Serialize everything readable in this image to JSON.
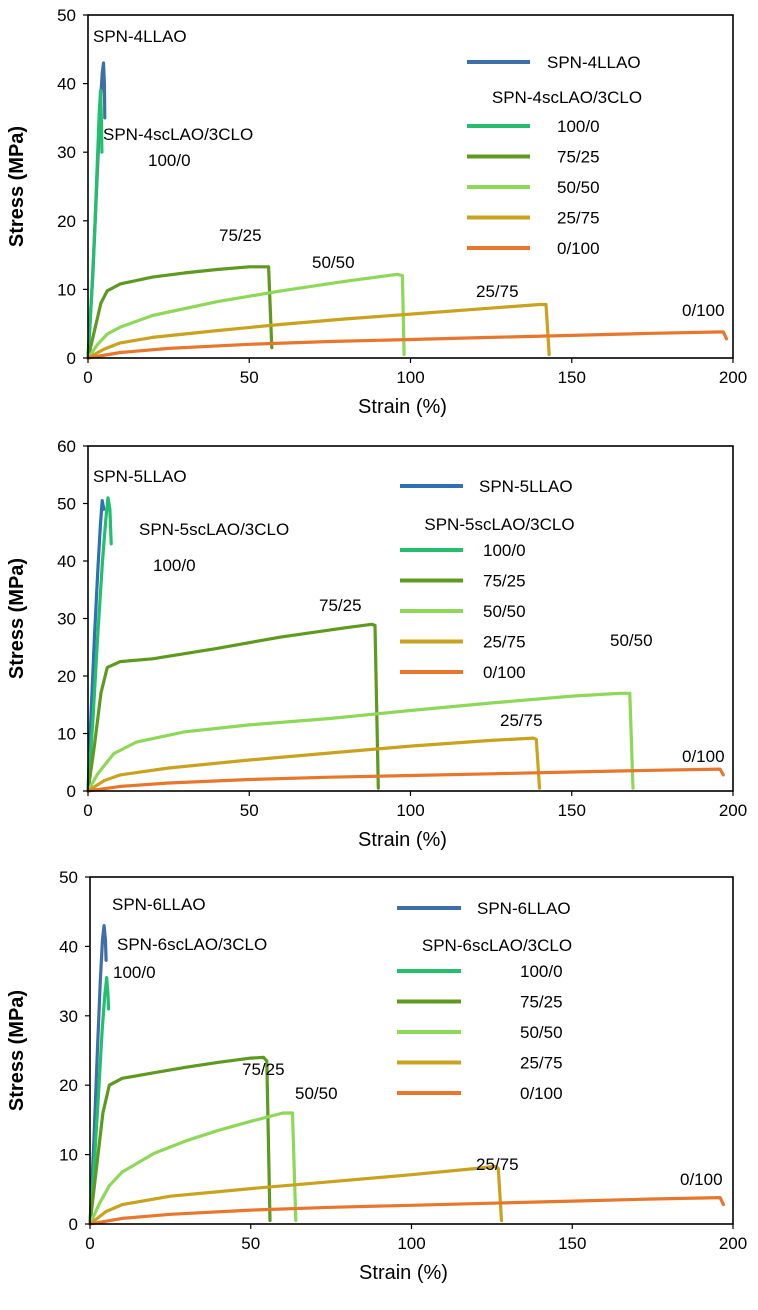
{
  "chart_data": [
    {
      "type": "line",
      "xlabel": "Strain (%)",
      "ylabel": "Stress (MPa)",
      "xlim": [
        0,
        200
      ],
      "ylim": [
        0,
        50
      ],
      "x_ticks": [
        "0",
        "50",
        "100",
        "150",
        "200"
      ],
      "y_ticks": [
        "0",
        "10",
        "20",
        "30",
        "40",
        "50"
      ],
      "legend": {
        "title": "SPN-4LLAO",
        "subtitle": "SPN-4scLAO/3CLO",
        "entries": [
          "100/0",
          "75/25",
          "50/50",
          "25/75",
          "0/100"
        ]
      },
      "annotations": [
        "SPN-4LLAO",
        "SPN-4scLAO/3CLO",
        "100/0",
        "75/25",
        "50/50",
        "25/75",
        "0/100"
      ],
      "series": [
        {
          "name": "SPN-4LLAO",
          "color": "#3f6fa8",
          "points": [
            [
              0,
              0
            ],
            [
              1.5,
              12
            ],
            [
              2.8,
              26
            ],
            [
              3.8,
              37
            ],
            [
              4.4,
              41.5
            ],
            [
              4.8,
              43
            ],
            [
              5.1,
              40
            ],
            [
              5.2,
              35
            ]
          ]
        },
        {
          "name": "100/0",
          "color": "#22c06e",
          "points": [
            [
              0,
              0
            ],
            [
              1.2,
              10
            ],
            [
              2.2,
              20
            ],
            [
              3.0,
              30
            ],
            [
              3.5,
              36
            ],
            [
              3.9,
              39
            ],
            [
              4.2,
              34
            ],
            [
              4.3,
              30
            ]
          ]
        },
        {
          "name": "75/25",
          "color": "#5e9a1f",
          "points": [
            [
              0,
              0
            ],
            [
              2,
              4
            ],
            [
              4,
              8
            ],
            [
              6,
              9.8
            ],
            [
              10,
              10.8
            ],
            [
              20,
              11.8
            ],
            [
              30,
              12.4
            ],
            [
              40,
              12.9
            ],
            [
              50,
              13.3
            ],
            [
              56,
              13.3
            ],
            [
              57,
              1.5
            ]
          ]
        },
        {
          "name": "50/50",
          "color": "#8ed858",
          "points": [
            [
              0,
              0
            ],
            [
              3,
              2
            ],
            [
              6,
              3.5
            ],
            [
              10,
              4.5
            ],
            [
              20,
              6.2
            ],
            [
              40,
              8.2
            ],
            [
              60,
              9.8
            ],
            [
              80,
              11.2
            ],
            [
              96,
              12.2
            ],
            [
              97.5,
              12
            ],
            [
              98,
              0.5
            ]
          ]
        },
        {
          "name": "25/75",
          "color": "#c9a21f",
          "points": [
            [
              0,
              0
            ],
            [
              5,
              1.3
            ],
            [
              10,
              2.2
            ],
            [
              20,
              3
            ],
            [
              40,
              4
            ],
            [
              60,
              4.9
            ],
            [
              80,
              5.7
            ],
            [
              100,
              6.4
            ],
            [
              120,
              7.1
            ],
            [
              140,
              7.8
            ],
            [
              142,
              7.8
            ],
            [
              143,
              0.5
            ]
          ]
        },
        {
          "name": "0/100",
          "color": "#e8772e",
          "points": [
            [
              0,
              0
            ],
            [
              10,
              0.8
            ],
            [
              25,
              1.4
            ],
            [
              50,
              2
            ],
            [
              75,
              2.4
            ],
            [
              100,
              2.7
            ],
            [
              125,
              3
            ],
            [
              150,
              3.3
            ],
            [
              175,
              3.6
            ],
            [
              197,
              3.8
            ],
            [
              198,
              2.8
            ]
          ]
        }
      ]
    },
    {
      "type": "line",
      "xlabel": "Strain (%)",
      "ylabel": "Stress (MPa)",
      "xlim": [
        0,
        200
      ],
      "ylim": [
        0,
        60
      ],
      "x_ticks": [
        "0",
        "50",
        "100",
        "150",
        "200"
      ],
      "y_ticks": [
        "0",
        "10",
        "20",
        "30",
        "40",
        "50",
        "60"
      ],
      "legend": {
        "title": "SPN-5LLAO",
        "subtitle": "SPN-5scLAO/3CLO",
        "entries": [
          "100/0",
          "75/25",
          "50/50",
          "25/75",
          "0/100"
        ]
      },
      "annotations": [
        "SPN-5LLAO",
        "SPN-5scLAO/3CLO",
        "100/0",
        "75/25",
        "50/50",
        "25/75",
        "0/100"
      ],
      "series": [
        {
          "name": "SPN-5LLAO",
          "color": "#2f72b3",
          "points": [
            [
              0,
              0
            ],
            [
              1,
              14
            ],
            [
              2,
              27
            ],
            [
              3,
              38
            ],
            [
              3.8,
              46
            ],
            [
              4.4,
              50.5
            ],
            [
              4.9,
              49
            ]
          ]
        },
        {
          "name": "100/0",
          "color": "#22c06e",
          "points": [
            [
              0,
              0
            ],
            [
              1.5,
              12
            ],
            [
              3,
              27
            ],
            [
              4.5,
              40
            ],
            [
              5.5,
              47
            ],
            [
              6.2,
              51
            ],
            [
              6.8,
              49
            ],
            [
              7.2,
              43
            ]
          ]
        },
        {
          "name": "75/25",
          "color": "#5e9a1f",
          "points": [
            [
              0,
              0
            ],
            [
              2,
              8
            ],
            [
              4,
              17
            ],
            [
              6,
              21.5
            ],
            [
              10,
              22.5
            ],
            [
              20,
              23
            ],
            [
              40,
              24.8
            ],
            [
              60,
              26.8
            ],
            [
              80,
              28.4
            ],
            [
              88,
              29
            ],
            [
              89,
              28.8
            ],
            [
              90,
              0.5
            ]
          ]
        },
        {
          "name": "50/50",
          "color": "#8ed858",
          "points": [
            [
              0,
              0
            ],
            [
              3,
              3
            ],
            [
              8,
              6.5
            ],
            [
              15,
              8.5
            ],
            [
              30,
              10.3
            ],
            [
              50,
              11.5
            ],
            [
              75,
              12.6
            ],
            [
              100,
              14
            ],
            [
              125,
              15.3
            ],
            [
              150,
              16.5
            ],
            [
              165,
              17
            ],
            [
              168,
              17
            ],
            [
              169,
              0.5
            ]
          ]
        },
        {
          "name": "25/75",
          "color": "#c9a21f",
          "points": [
            [
              0,
              0
            ],
            [
              5,
              1.8
            ],
            [
              10,
              2.8
            ],
            [
              25,
              4
            ],
            [
              50,
              5.4
            ],
            [
              75,
              6.6
            ],
            [
              100,
              7.8
            ],
            [
              125,
              8.8
            ],
            [
              138,
              9.2
            ],
            [
              139,
              9
            ],
            [
              140,
              0.5
            ]
          ]
        },
        {
          "name": "0/100",
          "color": "#e8772e",
          "points": [
            [
              0,
              0
            ],
            [
              10,
              0.8
            ],
            [
              25,
              1.4
            ],
            [
              50,
              2
            ],
            [
              75,
              2.4
            ],
            [
              100,
              2.7
            ],
            [
              125,
              3
            ],
            [
              150,
              3.3
            ],
            [
              175,
              3.6
            ],
            [
              196,
              3.8
            ],
            [
              197,
              2.8
            ]
          ]
        }
      ]
    },
    {
      "type": "line",
      "xlabel": "Strain (%)",
      "ylabel": "Stress (MPa)",
      "xlim": [
        0,
        200
      ],
      "ylim": [
        0,
        50
      ],
      "x_ticks": [
        "0",
        "50",
        "100",
        "150",
        "200"
      ],
      "y_ticks": [
        "0",
        "10",
        "20",
        "30",
        "40",
        "50"
      ],
      "legend": {
        "title": "SPN-6LLAO",
        "subtitle": "SPN-6scLAO/3CLO",
        "entries": [
          "100/0",
          "75/25",
          "50/50",
          "25/75",
          "0/100"
        ]
      },
      "annotations": [
        "SPN-6LLAO",
        "SPN-6scLAO/3CLO",
        "100/0",
        "75/25",
        "50/50",
        "25/75",
        "0/100"
      ],
      "series": [
        {
          "name": "SPN-6LLAO",
          "color": "#3f6fa8",
          "points": [
            [
              0,
              0
            ],
            [
              1.2,
              12
            ],
            [
              2.3,
              25
            ],
            [
              3.2,
              35
            ],
            [
              3.9,
              41
            ],
            [
              4.4,
              43
            ],
            [
              4.8,
              41
            ],
            [
              5,
              38
            ]
          ]
        },
        {
          "name": "100/0",
          "color": "#22c06e",
          "points": [
            [
              0,
              0
            ],
            [
              1.5,
              10
            ],
            [
              2.8,
              20
            ],
            [
              3.8,
              28
            ],
            [
              4.6,
              33
            ],
            [
              5.2,
              35.5
            ],
            [
              5.6,
              33
            ],
            [
              5.8,
              31
            ]
          ]
        },
        {
          "name": "75/25",
          "color": "#5e9a1f",
          "points": [
            [
              0,
              0
            ],
            [
              2,
              8
            ],
            [
              4,
              16
            ],
            [
              6,
              20
            ],
            [
              10,
              21
            ],
            [
              20,
              21.8
            ],
            [
              30,
              22.6
            ],
            [
              40,
              23.3
            ],
            [
              50,
              23.9
            ],
            [
              54,
              24
            ],
            [
              55,
              23.5
            ],
            [
              56,
              0.5
            ]
          ]
        },
        {
          "name": "50/50",
          "color": "#8ed858",
          "points": [
            [
              0,
              0
            ],
            [
              3,
              3
            ],
            [
              6,
              5.5
            ],
            [
              10,
              7.5
            ],
            [
              20,
              10.2
            ],
            [
              30,
              12
            ],
            [
              40,
              13.5
            ],
            [
              50,
              14.8
            ],
            [
              60,
              16
            ],
            [
              63,
              16
            ],
            [
              64,
              0.5
            ]
          ]
        },
        {
          "name": "25/75",
          "color": "#c9a21f",
          "points": [
            [
              0,
              0
            ],
            [
              5,
              1.8
            ],
            [
              10,
              2.8
            ],
            [
              25,
              4
            ],
            [
              50,
              5.1
            ],
            [
              75,
              6.1
            ],
            [
              100,
              7.1
            ],
            [
              120,
              8
            ],
            [
              126,
              8.3
            ],
            [
              127,
              8
            ],
            [
              128,
              0.5
            ]
          ]
        },
        {
          "name": "0/100",
          "color": "#e8772e",
          "points": [
            [
              0,
              0
            ],
            [
              10,
              0.8
            ],
            [
              25,
              1.4
            ],
            [
              50,
              2
            ],
            [
              75,
              2.4
            ],
            [
              100,
              2.7
            ],
            [
              125,
              3
            ],
            [
              150,
              3.3
            ],
            [
              175,
              3.6
            ],
            [
              196,
              3.8
            ],
            [
              197,
              2.8
            ]
          ]
        }
      ]
    }
  ]
}
